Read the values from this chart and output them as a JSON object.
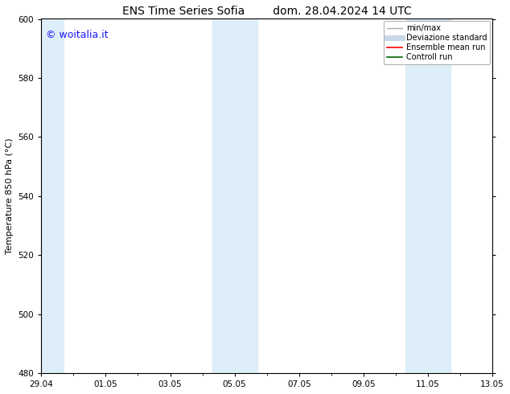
{
  "title_left": "ENS Time Series Sofia",
  "title_right": "dom. 28.04.2024 14 UTC",
  "ylabel": "Temperature 850 hPa (°C)",
  "ylim": [
    480,
    600
  ],
  "yticks": [
    480,
    500,
    520,
    540,
    560,
    580,
    600
  ],
  "xlim_start": 0,
  "xlim_end": 14,
  "xtick_labels": [
    "29.04",
    "01.05",
    "03.05",
    "05.05",
    "07.05",
    "09.05",
    "11.05",
    "13.05"
  ],
  "xtick_positions": [
    0,
    2,
    4,
    6,
    8,
    10,
    12,
    14
  ],
  "watermark": "© woitalia.it",
  "watermark_color": "#1a1aff",
  "shaded_bands": [
    {
      "x_start": -0.1,
      "x_end": 0.7
    },
    {
      "x_start": 5.3,
      "x_end": 6.7
    },
    {
      "x_start": 11.3,
      "x_end": 12.7
    }
  ],
  "shade_color": "#ddeef8",
  "background_color": "#ffffff",
  "legend_entries": [
    {
      "label": "min/max",
      "color": "#aaaaaa",
      "lw": 1.0,
      "style": "solid"
    },
    {
      "label": "Deviazione standard",
      "color": "#c8d8e8",
      "lw": 5,
      "style": "solid"
    },
    {
      "label": "Ensemble mean run",
      "color": "#ff0000",
      "lw": 1.2,
      "style": "solid"
    },
    {
      "label": "Controll run",
      "color": "#006600",
      "lw": 1.2,
      "style": "solid"
    }
  ],
  "title_fontsize": 10,
  "tick_fontsize": 7.5,
  "ylabel_fontsize": 8,
  "legend_fontsize": 7,
  "watermark_fontsize": 9
}
